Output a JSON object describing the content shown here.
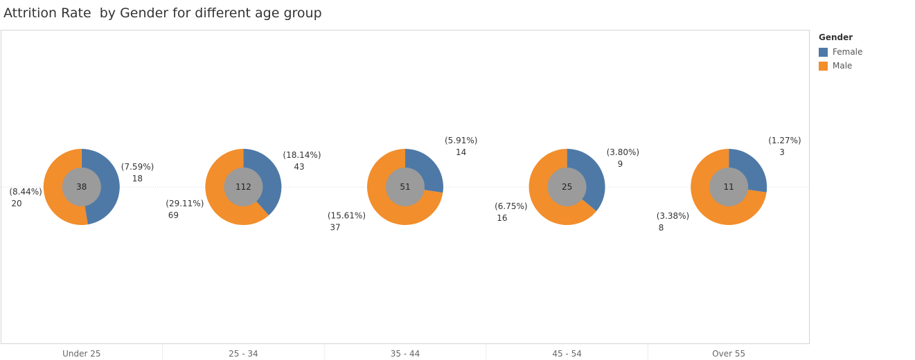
{
  "title": "Attrition Rate  by Gender for different age group",
  "legend": {
    "title": "Gender",
    "items": [
      {
        "label": "Female",
        "color": "#4e79a7"
      },
      {
        "label": "Male",
        "color": "#f28e2b"
      }
    ]
  },
  "chart_data": {
    "type": "pie",
    "title": "Attrition Rate  by Gender for different age group",
    "legend_position": "right",
    "center_color": "#9b9b9b",
    "categories": [
      "Under 25",
      "25 - 34",
      "35 - 44",
      "45 - 54",
      "Over 55"
    ],
    "groups": [
      {
        "label": "Under 25",
        "total": "38",
        "slices": [
          {
            "gender": "Female",
            "value": 18,
            "pct": "(7.59%)",
            "count": "18"
          },
          {
            "gender": "Male",
            "value": 20,
            "pct": "(8.44%)",
            "count": "20"
          }
        ]
      },
      {
        "label": "25 - 34",
        "total": "112",
        "slices": [
          {
            "gender": "Female",
            "value": 43,
            "pct": "(18.14%)",
            "count": "43"
          },
          {
            "gender": "Male",
            "value": 69,
            "pct": "(29.11%)",
            "count": "69"
          }
        ]
      },
      {
        "label": "35 - 44",
        "total": "51",
        "slices": [
          {
            "gender": "Female",
            "value": 14,
            "pct": "(5.91%)",
            "count": "14"
          },
          {
            "gender": "Male",
            "value": 37,
            "pct": "(15.61%)",
            "count": "37"
          }
        ]
      },
      {
        "label": "45 - 54",
        "total": "25",
        "slices": [
          {
            "gender": "Female",
            "value": 9,
            "pct": "(3.80%)",
            "count": "9"
          },
          {
            "gender": "Male",
            "value": 16,
            "pct": "(6.75%)",
            "count": "16"
          }
        ]
      },
      {
        "label": "Over 55",
        "total": "11",
        "slices": [
          {
            "gender": "Female",
            "value": 3,
            "pct": "(1.27%)",
            "count": "3"
          },
          {
            "gender": "Male",
            "value": 8,
            "pct": "(3.38%)",
            "count": "8"
          }
        ]
      }
    ]
  }
}
